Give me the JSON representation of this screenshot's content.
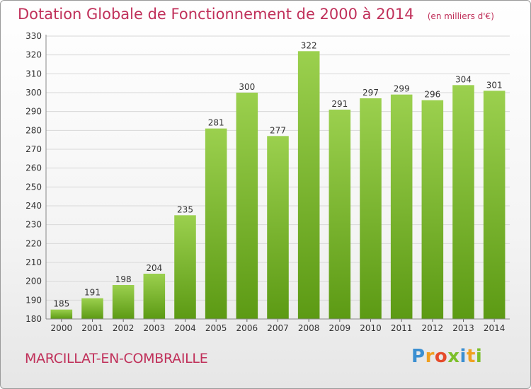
{
  "header": {
    "title": "Dotation Globale de Fonctionnement de 2000 à 2014",
    "subtitle": "(en milliers d'€)"
  },
  "footer": {
    "commune": "MARCILLAT-EN-COMBRAILLE",
    "logo": "Proxiti"
  },
  "colors": {
    "title": "#c0305a",
    "bar_top": "#9bd04e",
    "bar_bottom": "#5c9a14",
    "grid": "#d8d8d8"
  },
  "chart_data": {
    "type": "bar",
    "title": "Dotation Globale de Fonctionnement de 2000 à 2014",
    "subtitle": "(en milliers d'€)",
    "categories": [
      "2000",
      "2001",
      "2002",
      "2003",
      "2004",
      "2005",
      "2006",
      "2007",
      "2008",
      "2009",
      "2010",
      "2011",
      "2012",
      "2013",
      "2014"
    ],
    "values": [
      185,
      191,
      198,
      204,
      235,
      281,
      300,
      277,
      322,
      291,
      297,
      299,
      296,
      304,
      301
    ],
    "ylim": [
      180,
      330
    ],
    "yticks": [
      180,
      190,
      200,
      210,
      220,
      230,
      240,
      250,
      260,
      270,
      280,
      290,
      300,
      310,
      320,
      330
    ],
    "grid": true,
    "legend": "none",
    "xlabel": "",
    "ylabel": ""
  }
}
